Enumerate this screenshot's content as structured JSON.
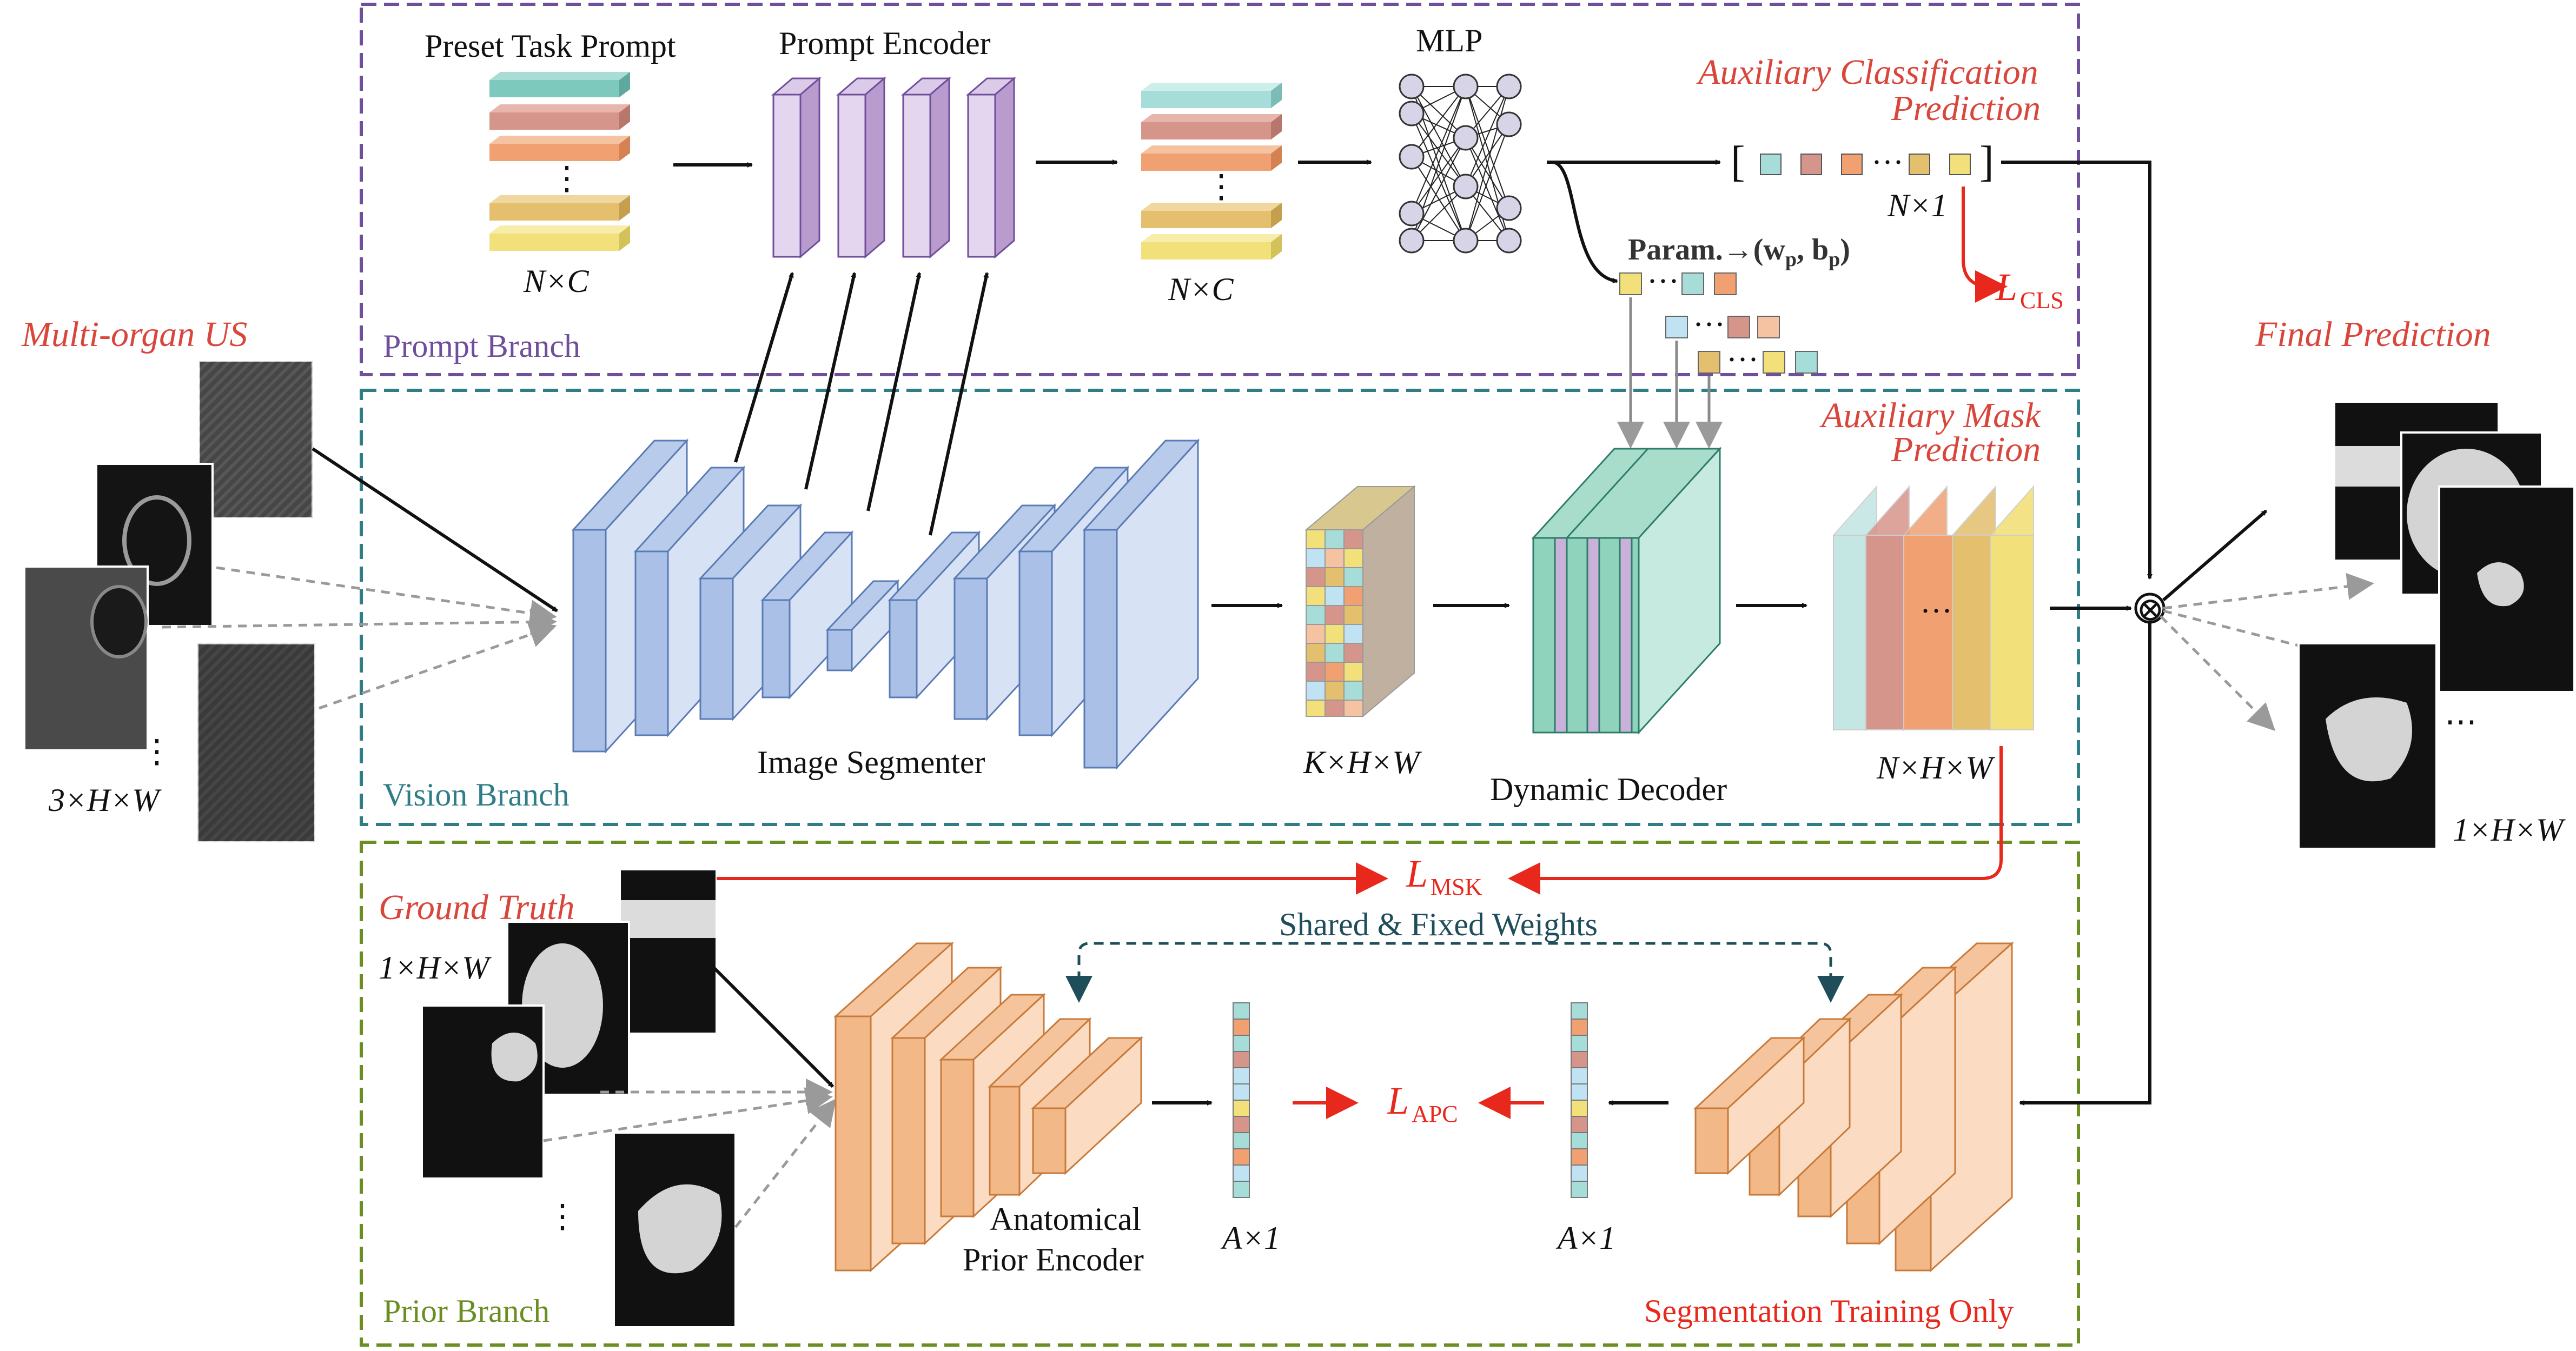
{
  "colors": {
    "prompt_branch": "#6f4e9c",
    "vision_branch": "#2e7d87",
    "prior_branch": "#6b8e23",
    "accent_red": "#e8281c",
    "label_red": "#d9463c",
    "blue_block": "#c9d7ee",
    "purple_block": "#c9b1d9",
    "orange_block": "#f6c49c",
    "teal_block": "#a8dccb"
  },
  "left_input": {
    "title": "Multi-organ US",
    "dims": "3×H×W",
    "ellipsis": "⋮"
  },
  "right_output": {
    "title": "Final Prediction",
    "dims": "1×H×W",
    "ellipsis": "⋯",
    "combine_symbol": "⊗"
  },
  "prompt_branch": {
    "label": "Prompt Branch",
    "preset_title": "Preset Task Prompt",
    "preset_dims": "N×C",
    "encoder_title": "Prompt Encoder",
    "encoded_dims": "N×C",
    "mlp_title": "MLP",
    "aux_cls_line1": "Auxiliary Classification",
    "aux_cls_line2": "Prediction",
    "cls_dims": "N×1",
    "param_label": "Param.→(w",
    "param_sub_p1": "p",
    "param_mid": ", b",
    "param_sub_p2": "p",
    "param_end": ")",
    "loss_cls_main": "L",
    "loss_cls_sub": "CLS",
    "dots": "⋮",
    "hdots": "···"
  },
  "vision_branch": {
    "label": "Vision Branch",
    "segmenter_title": "Image Segmenter",
    "feature_dims": "K×H×W",
    "decoder_title": "Dynamic Decoder",
    "aux_mask_line1": "Auxiliary Mask",
    "aux_mask_line2": "Prediction",
    "mask_dims": "N×H×W",
    "mask_dots": "···"
  },
  "prior_branch": {
    "label": "Prior Branch",
    "gt_title": "Ground Truth",
    "gt_dims": "1×H×W",
    "loss_msk_main": "L",
    "loss_msk_sub": "MSK",
    "shared_weights": "Shared & Fixed Weights",
    "encoder_line1": "Anatomical",
    "encoder_line2": "Prior Encoder",
    "vec_dims_left": "A×1",
    "vec_dims_right": "A×1",
    "loss_apc_main": "L",
    "loss_apc_sub": "APC",
    "training_only": "Segmentation Training Only",
    "ellipsis": "⋮"
  }
}
